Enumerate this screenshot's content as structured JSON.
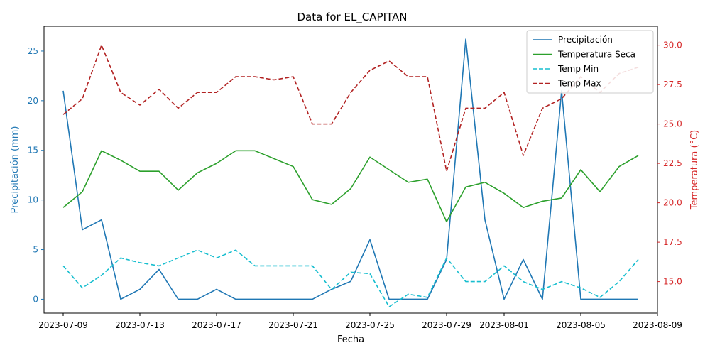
{
  "chart_data": {
    "type": "line",
    "title": "Data for EL_CAPITAN",
    "xlabel": "Fecha",
    "ylabel_left": "Precipitación (mm)",
    "ylabel_right": "Temperatura (°C)",
    "x_ticks": [
      "2023-07-09",
      "2023-07-13",
      "2023-07-17",
      "2023-07-21",
      "2023-07-25",
      "2023-07-29",
      "2023-08-01",
      "2023-08-05",
      "2023-08-09"
    ],
    "y_left_ticks": [
      0,
      5,
      10,
      15,
      20,
      25
    ],
    "y_right_ticks": [
      15.0,
      17.5,
      20.0,
      22.5,
      25.0,
      27.5,
      30.0
    ],
    "y_right_tick_labels": [
      "15.0",
      "17.5",
      "20.0",
      "22.5",
      "25.0",
      "27.5",
      "30.0"
    ],
    "ylim_left": [
      -1.4,
      27.5
    ],
    "ylim_right": [
      13.0,
      31.2
    ],
    "xlim": [
      "2023-07-08",
      "2023-08-09"
    ],
    "legend_position": "upper-right",
    "colors": {
      "precip": "#1f77b4",
      "temp_seca": "#2ca02c",
      "temp_min": "#17becf",
      "temp_max": "#b22222",
      "left_axis": "#1f77b4",
      "right_axis": "#d62728"
    },
    "dates": [
      "2023-07-09",
      "2023-07-10",
      "2023-07-11",
      "2023-07-12",
      "2023-07-13",
      "2023-07-14",
      "2023-07-15",
      "2023-07-16",
      "2023-07-17",
      "2023-07-18",
      "2023-07-19",
      "2023-07-20",
      "2023-07-21",
      "2023-07-22",
      "2023-07-23",
      "2023-07-24",
      "2023-07-25",
      "2023-07-26",
      "2023-07-27",
      "2023-07-28",
      "2023-07-29",
      "2023-07-30",
      "2023-07-31",
      "2023-08-01",
      "2023-08-02",
      "2023-08-03",
      "2023-08-04",
      "2023-08-05",
      "2023-08-06",
      "2023-08-07",
      "2023-08-08"
    ],
    "series": [
      {
        "name": "Precipitación",
        "axis": "left",
        "style": "solid",
        "color_key": "precip",
        "values": [
          21,
          7,
          8,
          0,
          1,
          3,
          0,
          0,
          1,
          0,
          0,
          0,
          0,
          0,
          1,
          1.8,
          6,
          0,
          0,
          0,
          4,
          26.2,
          8,
          0,
          4,
          0,
          21,
          0,
          0,
          0,
          0
        ]
      },
      {
        "name": "Temperatura Seca",
        "axis": "right",
        "style": "solid",
        "color_key": "temp_seca",
        "values": [
          19.7,
          20.7,
          23.3,
          22.7,
          22.0,
          22.0,
          20.8,
          21.9,
          22.5,
          23.3,
          23.3,
          22.8,
          22.3,
          20.2,
          19.9,
          20.9,
          22.9,
          22.1,
          21.3,
          21.5,
          18.8,
          21.0,
          21.3,
          20.6,
          19.7,
          20.1,
          20.3,
          22.1,
          20.7,
          22.3,
          23.0
        ]
      },
      {
        "name": "Temp Min",
        "axis": "right",
        "style": "dashed",
        "color_key": "temp_min",
        "values": [
          16.0,
          14.6,
          15.4,
          16.5,
          16.2,
          16.0,
          16.5,
          17.0,
          16.5,
          17.0,
          16.0,
          16.0,
          16.0,
          16.0,
          14.5,
          15.6,
          15.5,
          13.4,
          14.2,
          14.0,
          16.5,
          15.0,
          15.0,
          16.0,
          15.0,
          14.5,
          15.0,
          14.6,
          14.0,
          15.0,
          16.4
        ]
      },
      {
        "name": "Temp Max",
        "axis": "right",
        "style": "dashed",
        "color_key": "temp_max",
        "values": [
          25.6,
          26.6,
          30.0,
          27.0,
          26.2,
          27.2,
          26.0,
          27.0,
          27.0,
          28.0,
          28.0,
          27.8,
          28.0,
          25.0,
          25.0,
          27.0,
          28.4,
          29.0,
          28.0,
          28.0,
          22.0,
          26.0,
          26.0,
          27.0,
          23.0,
          26.0,
          26.6,
          28.0,
          27.0,
          28.2,
          28.6
        ]
      }
    ]
  }
}
